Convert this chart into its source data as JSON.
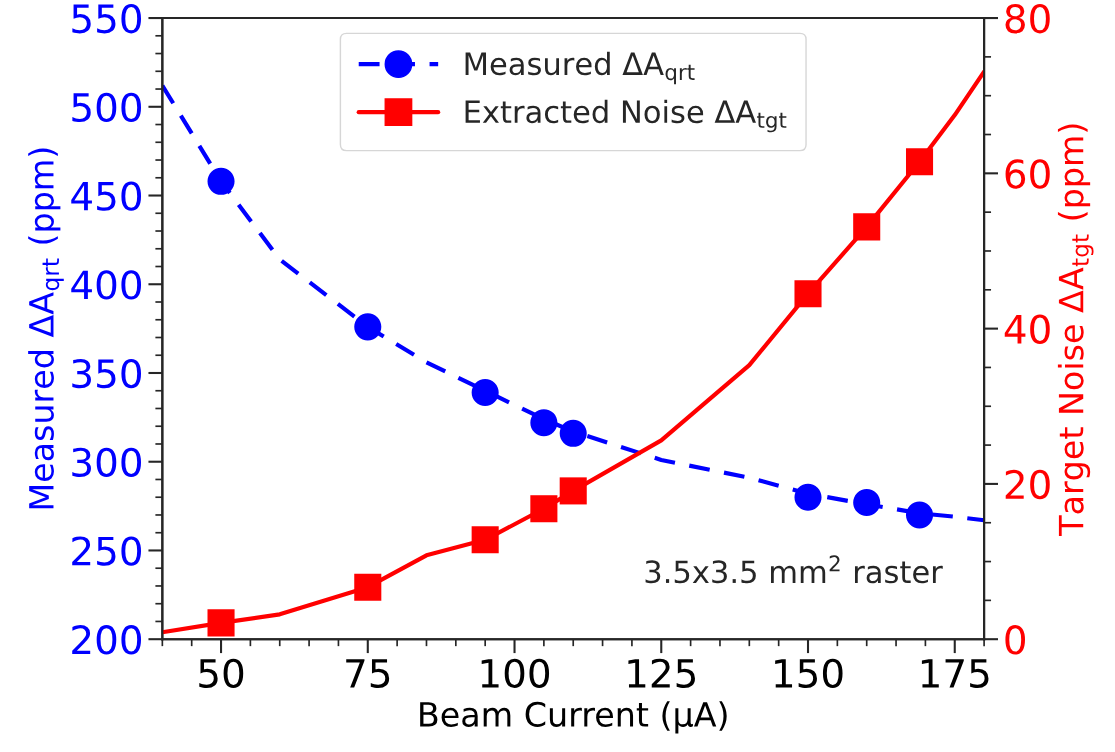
{
  "chart_data": {
    "type": "scatter",
    "xlabel": "Beam Current (μA)",
    "ylabel": "Measured ΔA$_{qrt}$ (ppm)",
    "y2label": "Target Noise ΔA$_{tgt}$ (ppm)",
    "xlim": [
      40,
      180
    ],
    "xticks": [
      50,
      75,
      100,
      125,
      150,
      175
    ],
    "ylim": [
      200,
      550
    ],
    "yticks": [
      200,
      250,
      300,
      350,
      400,
      450,
      500,
      550
    ],
    "y2lim": [
      0,
      80
    ],
    "y2ticks": [
      0,
      20,
      40,
      60,
      80
    ],
    "legend": "top",
    "grid": false,
    "annotations": [
      "3.5x3.5 mm$^{2}$ raster"
    ],
    "series": [
      {
        "name": "Measured ΔA$_{qrt}$",
        "color": "#0000ff",
        "marker": "circle",
        "x": [
          50,
          75,
          95,
          105,
          110,
          150,
          160,
          169
        ],
        "values": [
          458,
          376,
          339,
          322,
          316,
          280,
          277,
          270
        ]
      },
      {
        "type": "line",
        "color": "#0000ff",
        "line_style": "dashed",
        "x": [
          40,
          50,
          60,
          75,
          85,
          95,
          105,
          110,
          125,
          140,
          150,
          160,
          169,
          175,
          180
        ],
        "values": [
          512,
          458,
          414,
          376,
          356,
          340,
          324,
          317,
          301,
          291,
          282,
          276,
          271,
          269,
          267
        ]
      },
      {
        "name": "Extracted Noise ΔA$_{tgt}$",
        "color": "#ff0000",
        "marker": "square",
        "axis": "y2",
        "x": [
          50,
          75,
          95,
          105,
          110,
          150,
          160,
          169
        ],
        "values": [
          2.1,
          6.7,
          12.8,
          16.8,
          19.1,
          44.5,
          53.1,
          61.5
        ]
      },
      {
        "type": "line",
        "color": "#ff0000",
        "line_style": "solid",
        "axis": "y2",
        "x": [
          40,
          50,
          60,
          75,
          85,
          95,
          105,
          110,
          125,
          140,
          150,
          160,
          169,
          175,
          180
        ],
        "values": [
          0.9,
          2.1,
          3.2,
          6.7,
          10.8,
          12.8,
          16.8,
          19.1,
          25.6,
          35.3,
          44.5,
          53.1,
          61.5,
          67.5,
          73.1
        ]
      }
    ]
  }
}
